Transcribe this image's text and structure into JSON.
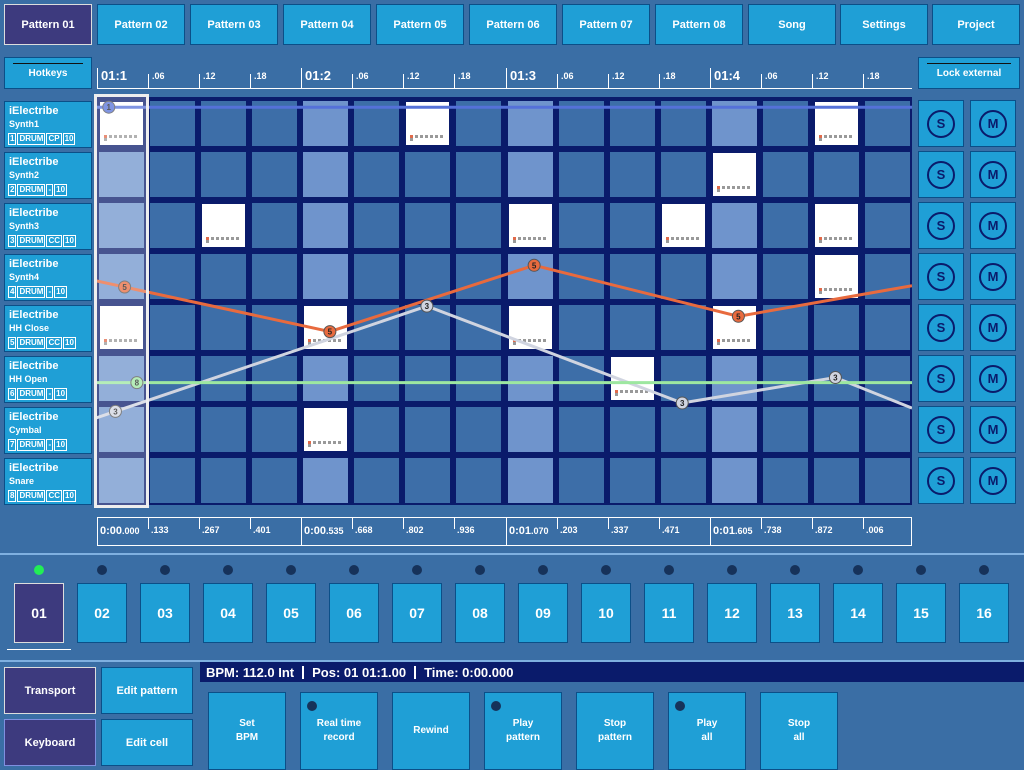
{
  "nav": {
    "tabs": [
      "Pattern 01",
      "Pattern 02",
      "Pattern 03",
      "Pattern 04",
      "Pattern 05",
      "Pattern 06",
      "Pattern 07",
      "Pattern 08",
      "Song",
      "Settings",
      "Project"
    ],
    "active": 0
  },
  "hotkeys_label": "Hotkeys",
  "lock_external_label": "Lock external",
  "ruler": {
    "major": [
      "01:1",
      "01:2",
      "01:3",
      "01:4"
    ],
    "minor": [
      ".06",
      ".12",
      ".18"
    ]
  },
  "tracks": [
    {
      "name": "iElectribe",
      "sub": "Synth1",
      "num": "1",
      "type": "DRUM",
      "cc": "CP",
      "vel": "10"
    },
    {
      "name": "iElectribe",
      "sub": "Synth2",
      "num": "2",
      "type": "DRUM",
      "cc": "-",
      "vel": "10"
    },
    {
      "name": "iElectribe",
      "sub": "Synth3",
      "num": "3",
      "type": "DRUM",
      "cc": "CC",
      "vel": "10"
    },
    {
      "name": "iElectribe",
      "sub": "Synth4",
      "num": "4",
      "type": "DRUM",
      "cc": "-",
      "vel": "10"
    },
    {
      "name": "iElectribe",
      "sub": "HH Close",
      "num": "5",
      "type": "DRUM",
      "cc": "CC",
      "vel": "10"
    },
    {
      "name": "iElectribe",
      "sub": "HH Open",
      "num": "6",
      "type": "DRUM",
      "cc": "-",
      "vel": "10"
    },
    {
      "name": "iElectribe",
      "sub": "Cymbal",
      "num": "7",
      "type": "DRUM",
      "cc": "-",
      "vel": "10"
    },
    {
      "name": "iElectribe",
      "sub": "Snare",
      "num": "8",
      "type": "DRUM",
      "cc": "CC",
      "vel": "10"
    }
  ],
  "steps": [
    [
      0,
      6,
      14
    ],
    [
      12
    ],
    [
      2,
      8,
      11,
      14
    ],
    [
      14
    ],
    [
      0,
      4,
      8,
      12
    ],
    [
      10
    ],
    [
      4
    ],
    []
  ],
  "solo_label": "S",
  "mute_label": "M",
  "automation": [
    {
      "color": "#5571d8",
      "label": "1",
      "points": [
        [
          0,
          0.2
        ],
        [
          16,
          0.2
        ]
      ]
    },
    {
      "color": "#e86a3e",
      "label": "5",
      "points": [
        [
          0,
          3.6
        ],
        [
          4.6,
          4.6
        ],
        [
          8.6,
          3.3
        ],
        [
          12.6,
          4.3
        ],
        [
          16,
          3.7
        ]
      ]
    },
    {
      "color": "#d0d4e0",
      "label": "3",
      "points": [
        [
          0,
          6.3
        ],
        [
          6.5,
          4.1
        ],
        [
          11.5,
          6.0
        ],
        [
          14.5,
          5.5
        ],
        [
          16,
          6.1
        ]
      ]
    },
    {
      "color": "#9de7a0",
      "label": "8",
      "points": [
        [
          0,
          5.6
        ],
        [
          16,
          5.6
        ]
      ]
    }
  ],
  "automation_markers": [
    {
      "line": 0,
      "step": 0.27
    },
    {
      "line": 1,
      "step": 0.58
    },
    {
      "line": 1,
      "step": 4.6
    },
    {
      "line": 1,
      "step": 8.6
    },
    {
      "line": 1,
      "step": 12.6
    },
    {
      "line": 2,
      "step": 0.4
    },
    {
      "line": 2,
      "step": 6.5
    },
    {
      "line": 2,
      "step": 11.5
    },
    {
      "line": 2,
      "step": 14.5
    },
    {
      "line": 3,
      "step": 0.82
    }
  ],
  "timeline": {
    "major": [
      {
        "big": "0:00",
        "small": ".000"
      },
      {
        "big": "0:00",
        "small": ".535"
      },
      {
        "big": "0:01",
        "small": ".070"
      },
      {
        "big": "0:01",
        "small": ".605"
      }
    ],
    "minor": [
      ".133",
      ".267",
      ".401",
      ".668",
      ".802",
      ".936",
      ".203",
      ".337",
      ".471",
      ".738",
      ".872",
      ".006"
    ]
  },
  "patterns": [
    "01",
    "02",
    "03",
    "04",
    "05",
    "06",
    "07",
    "08",
    "09",
    "10",
    "11",
    "12",
    "13",
    "14",
    "15",
    "16"
  ],
  "pattern_active": 0,
  "left_buttons": {
    "transport": "Transport",
    "edit_pattern": "Edit pattern",
    "keyboard": "Keyboard",
    "edit_cell": "Edit cell"
  },
  "status": {
    "bpm": "BPM: 112.0 Int",
    "pos": "Pos: 01 01:1.00",
    "time": "Time: 0:00.000"
  },
  "transport_buttons": [
    {
      "label": "Set\nBPM",
      "dot": false
    },
    {
      "label": "Real time\nrecord",
      "dot": true
    },
    {
      "label": "Rewind",
      "dot": false
    },
    {
      "label": "Play\npattern",
      "dot": true
    },
    {
      "label": "Stop\npattern",
      "dot": false
    },
    {
      "label": "Play\nall",
      "dot": true
    },
    {
      "label": "Stop\nall",
      "dot": false
    }
  ]
}
